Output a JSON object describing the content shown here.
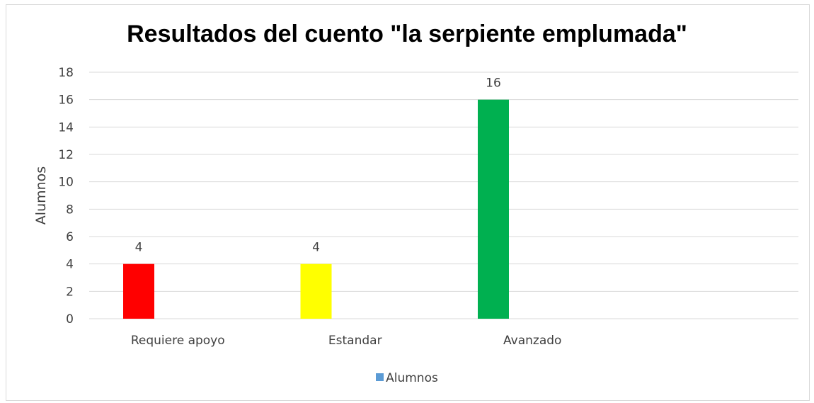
{
  "chart_data": {
    "type": "bar",
    "title": "Resultados del cuento \"la serpiente emplumada\"",
    "ylabel": "Alumnos",
    "xlabel": "",
    "categories": [
      "Requiere apoyo",
      "Estandar",
      "Avanzado",
      ""
    ],
    "series": [
      {
        "name": "Alumnos",
        "values": [
          4,
          4,
          16,
          null
        ],
        "bar_colors": [
          "#ff0000",
          "#ffff00",
          "#00b050"
        ],
        "legend_color": "#5b9bd5"
      }
    ],
    "ylim": [
      0,
      18
    ],
    "yticks": [
      0,
      2,
      4,
      6,
      8,
      10,
      12,
      14,
      16,
      18
    ],
    "grid": true,
    "legend_position": "bottom",
    "data_labels": [
      "4",
      "4",
      "16"
    ]
  }
}
